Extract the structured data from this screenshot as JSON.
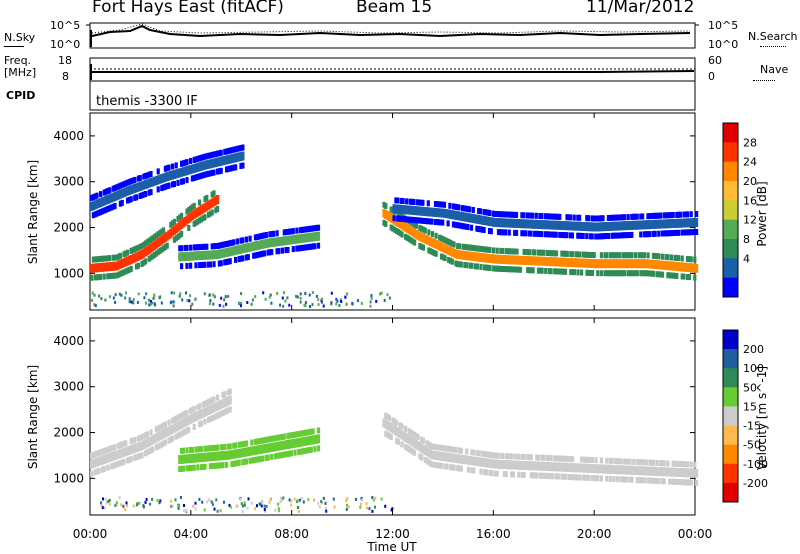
{
  "header": {
    "station": "Fort Hays East (fitACF)",
    "beam": "Beam 15",
    "date": "11/Mar/2012"
  },
  "top_panels": {
    "nsky_label": "N.Sky",
    "nsky_top_tick": "10^5",
    "nsky_bottom_tick": "10^0",
    "nsearch_label": "N.Search",
    "nsearch_top_tick": "10^5",
    "nsearch_bottom_tick": "10^0",
    "freq_label_1": "Freq.",
    "freq_label_2": "[MHz]",
    "freq_top_tick": "18",
    "freq_bottom_tick": "8",
    "nave_label": "Nave",
    "nave_top_tick": "60",
    "nave_bottom_tick": "0",
    "cpid_label": "CPID",
    "cpid_value": "themis -3300 IF"
  },
  "chart_data": [
    {
      "type": "heatmap",
      "name": "Power",
      "ylabel": "Slant Range [km]",
      "colorbar_label": "Power [dB]",
      "colorbar_ticks": [
        "28",
        "24",
        "20",
        "16",
        "12",
        "8",
        "4"
      ],
      "colorbar_colors": [
        "#e00000",
        "#ff3300",
        "#ff8800",
        "#ffbb33",
        "#cccc33",
        "#55aa55",
        "#2e8b57",
        "#1a5fa8",
        "#0000ff"
      ],
      "y_ticks": [
        "4000",
        "3000",
        "2000",
        "1000"
      ],
      "ylim": [
        200,
        4500
      ],
      "x_ticks": [
        "00:00",
        "04:00",
        "08:00",
        "12:00",
        "16:00",
        "20:00",
        "00:00"
      ],
      "xlim_hours": [
        0,
        24
      ],
      "features": [
        {
          "desc": "main band",
          "t": [
            0.0,
            1.0,
            2.0,
            3.0,
            4.0,
            5.0
          ],
          "range_km": [
            1100,
            1150,
            1400,
            1800,
            2250,
            2600
          ],
          "power_db": 28
        },
        {
          "desc": "upper streak",
          "t": [
            0.0,
            1.5,
            3.0,
            4.5,
            6.0
          ],
          "range_km": [
            2450,
            2800,
            3100,
            3350,
            3550
          ],
          "power_db": 6
        },
        {
          "desc": "lower patch",
          "t": [
            3.5,
            5.0,
            7.0,
            9.0
          ],
          "range_km": [
            1350,
            1400,
            1650,
            1800
          ],
          "power_db": 12
        },
        {
          "desc": "post-noon band",
          "t": [
            11.6,
            13.0,
            14.5,
            16.0,
            18.0,
            20.0,
            22.0,
            24.0
          ],
          "range_km": [
            2300,
            1800,
            1400,
            1300,
            1250,
            1200,
            1200,
            1100
          ],
          "power_db": 26
        },
        {
          "desc": "far streak",
          "t": [
            12.0,
            14.0,
            16.0,
            20.0,
            24.0
          ],
          "range_km": [
            2400,
            2300,
            2100,
            2000,
            2100
          ],
          "power_db": 6
        }
      ]
    },
    {
      "type": "heatmap",
      "name": "Velocity",
      "ylabel": "Slant Range [km]",
      "colorbar_label": "Velocity [m s^-1]",
      "colorbar_ticks": [
        "200",
        "100",
        "50",
        "15",
        "-15",
        "-50",
        "-100",
        "-200"
      ],
      "colorbar_colors": [
        "#0000cc",
        "#1f5fa0",
        "#2e8b57",
        "#66cc33",
        "#cccccc",
        "#ffb84d",
        "#ff8800",
        "#ff3300",
        "#e00000"
      ],
      "y_ticks": [
        "4000",
        "3000",
        "2000",
        "1000"
      ],
      "ylim": [
        200,
        4500
      ],
      "x_ticks": [
        "00:00",
        "04:00",
        "08:00",
        "12:00",
        "16:00",
        "20:00",
        "00:00"
      ],
      "xlim_hours": [
        0,
        24
      ],
      "xlabel": "Time UT",
      "features": [
        {
          "desc": "main band",
          "t": [
            0.0,
            2.0,
            4.0,
            5.5
          ],
          "range_km": [
            1300,
            1700,
            2300,
            2700
          ],
          "velocity": 0
        },
        {
          "desc": "green patch",
          "t": [
            3.5,
            5.5,
            7.5,
            9.0
          ],
          "range_km": [
            1400,
            1500,
            1700,
            1850
          ],
          "velocity": 40
        },
        {
          "desc": "post-noon band",
          "t": [
            11.6,
            13.5,
            16.0,
            20.0,
            24.0
          ],
          "range_km": [
            2200,
            1500,
            1300,
            1200,
            1100
          ],
          "velocity": 0
        }
      ]
    }
  ]
}
